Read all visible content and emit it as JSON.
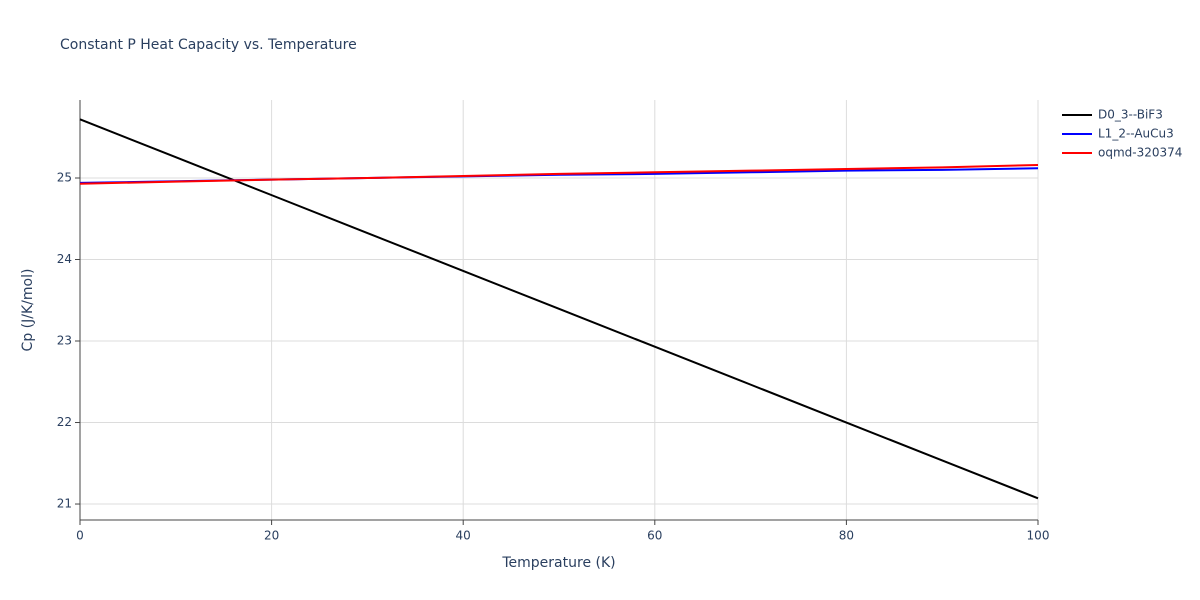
{
  "chart_data": {
    "type": "line",
    "title": "Constant P Heat Capacity vs. Temperature",
    "x_label": "Temperature (K)",
    "y_label": "Cp (J/K/mol)",
    "x": [
      0,
      10,
      20,
      30,
      40,
      50,
      60,
      70,
      80,
      90,
      100
    ],
    "series": [
      {
        "name": "D0_3--BiF3",
        "color": "#000000",
        "values": [
          25.72,
          25.255,
          24.79,
          24.325,
          23.86,
          23.395,
          22.93,
          22.465,
          22.0,
          21.535,
          21.07
        ]
      },
      {
        "name": "L1_2--AuCu3",
        "color": "#0000ff",
        "values": [
          24.94,
          24.96,
          24.98,
          25.0,
          25.02,
          25.04,
          25.05,
          25.07,
          25.09,
          25.1,
          25.12
        ]
      },
      {
        "name": "oqmd-320374",
        "color": "#ff0000",
        "values": [
          24.93,
          24.955,
          24.98,
          25.0,
          25.025,
          25.05,
          25.07,
          25.09,
          25.11,
          25.13,
          25.16
        ]
      }
    ],
    "xlim": [
      0,
      100
    ],
    "xticks": [
      0,
      20,
      40,
      60,
      80,
      100
    ],
    "ylim": [
      20.804,
      25.957
    ],
    "yticks": [
      21,
      22,
      23,
      24,
      25
    ],
    "grid": true,
    "legend_position": "right"
  }
}
